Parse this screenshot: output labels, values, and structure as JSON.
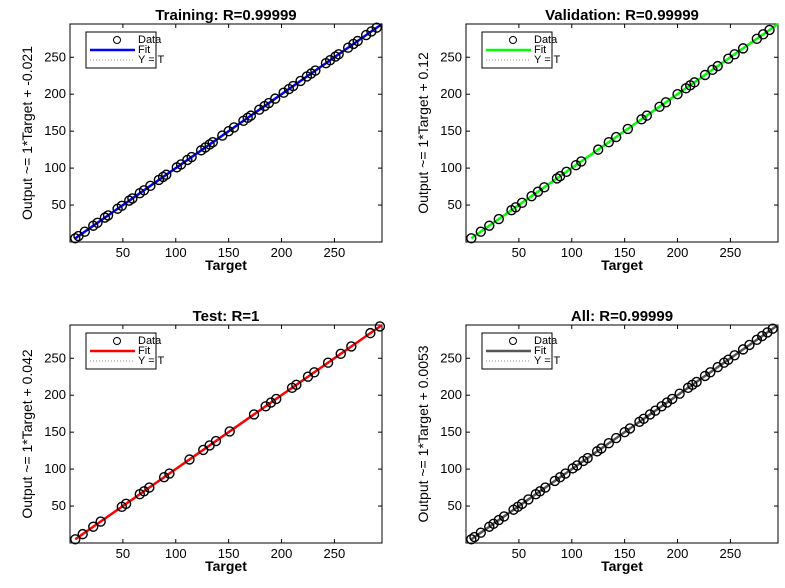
{
  "figure": {
    "legend_labels": [
      "Data",
      "Fit",
      "Y = T"
    ]
  },
  "chart_data": [
    {
      "type": "scatter",
      "title": "Training: R=0.99999",
      "xlabel": "Target",
      "ylabel": "Output ~= 1*Target + -0.021",
      "xlim": [
        0,
        295
      ],
      "ylim": [
        0,
        295
      ],
      "xticks": [
        50,
        100,
        150,
        200,
        250
      ],
      "yticks": [
        50,
        100,
        150,
        200,
        250
      ],
      "legend": [
        "Data",
        "Fit",
        "Y = T"
      ],
      "fit_color": "#0000ff",
      "fit_label": "Fit",
      "fit": {
        "slope": 1,
        "intercept": -0.021
      },
      "series": [
        {
          "name": "Data",
          "values": [
            [
              5,
              5
            ],
            [
              8,
              8
            ],
            [
              14,
              14
            ],
            [
              22,
              22
            ],
            [
              26,
              26
            ],
            [
              33,
              33
            ],
            [
              36,
              36
            ],
            [
              45,
              45
            ],
            [
              49,
              49
            ],
            [
              56,
              56
            ],
            [
              59,
              59
            ],
            [
              66,
              66
            ],
            [
              70,
              70
            ],
            [
              76,
              76
            ],
            [
              84,
              84
            ],
            [
              88,
              88
            ],
            [
              91,
              91
            ],
            [
              101,
              101
            ],
            [
              105,
              105
            ],
            [
              111,
              111
            ],
            [
              115,
              115
            ],
            [
              124,
              124
            ],
            [
              128,
              128
            ],
            [
              132,
              132
            ],
            [
              135,
              135
            ],
            [
              144,
              144
            ],
            [
              150,
              150
            ],
            [
              155,
              155
            ],
            [
              164,
              164
            ],
            [
              168,
              168
            ],
            [
              171,
              171
            ],
            [
              179,
              179
            ],
            [
              184,
              184
            ],
            [
              188,
              188
            ],
            [
              194,
              194
            ],
            [
              202,
              202
            ],
            [
              207,
              207
            ],
            [
              211,
              211
            ],
            [
              218,
              218
            ],
            [
              224,
              224
            ],
            [
              228,
              228
            ],
            [
              232,
              232
            ],
            [
              242,
              242
            ],
            [
              246,
              246
            ],
            [
              251,
              251
            ],
            [
              254,
              254
            ],
            [
              263,
              263
            ],
            [
              268,
              268
            ],
            [
              272,
              272
            ],
            [
              280,
              280
            ],
            [
              285,
              285
            ],
            [
              290,
              290
            ]
          ]
        }
      ]
    },
    {
      "type": "scatter",
      "title": "Validation: R=0.99999",
      "xlabel": "Target",
      "ylabel": "Output ~= 1*Target + 0.12",
      "xlim": [
        0,
        295
      ],
      "ylim": [
        0,
        295
      ],
      "xticks": [
        50,
        100,
        150,
        200,
        250
      ],
      "yticks": [
        50,
        100,
        150,
        200,
        250
      ],
      "legend": [
        "Data",
        "Fit",
        "Y = T"
      ],
      "fit_color": "#00ff00",
      "fit_label": "Fit",
      "fit": {
        "slope": 1,
        "intercept": 0.12
      },
      "series": [
        {
          "name": "Data",
          "values": [
            [
              5,
              5
            ],
            [
              14,
              14
            ],
            [
              22,
              22
            ],
            [
              31,
              31
            ],
            [
              43,
              43
            ],
            [
              47,
              47
            ],
            [
              53,
              53
            ],
            [
              62,
              62
            ],
            [
              68,
              68
            ],
            [
              74,
              74
            ],
            [
              86,
              86
            ],
            [
              89,
              89
            ],
            [
              95,
              95
            ],
            [
              104,
              104
            ],
            [
              109,
              109
            ],
            [
              125,
              125
            ],
            [
              135,
              135
            ],
            [
              142,
              142
            ],
            [
              153,
              153
            ],
            [
              166,
              166
            ],
            [
              171,
              171
            ],
            [
              183,
              183
            ],
            [
              189,
              189
            ],
            [
              200,
              200
            ],
            [
              208,
              208
            ],
            [
              212,
              212
            ],
            [
              216,
              216
            ],
            [
              226,
              226
            ],
            [
              233,
              233
            ],
            [
              238,
              238
            ],
            [
              248,
              248
            ],
            [
              254,
              254
            ],
            [
              262,
              262
            ],
            [
              275,
              275
            ],
            [
              281,
              281
            ],
            [
              287,
              287
            ]
          ]
        }
      ]
    },
    {
      "type": "scatter",
      "title": "Test: R=1",
      "xlabel": "Target",
      "ylabel": "Output ~= 1*Target + 0.042",
      "xlim": [
        0,
        295
      ],
      "ylim": [
        0,
        295
      ],
      "xticks": [
        50,
        100,
        150,
        200,
        250
      ],
      "yticks": [
        50,
        100,
        150,
        200,
        250
      ],
      "legend": [
        "Data",
        "Fit",
        "Y = T"
      ],
      "fit_color": "#ff0000",
      "fit_label": "Fit",
      "fit": {
        "slope": 1,
        "intercept": 0.042
      },
      "series": [
        {
          "name": "Data",
          "values": [
            [
              5,
              5
            ],
            [
              12,
              12
            ],
            [
              22,
              22
            ],
            [
              29,
              29
            ],
            [
              49,
              49
            ],
            [
              53,
              53
            ],
            [
              66,
              66
            ],
            [
              70,
              70
            ],
            [
              75,
              75
            ],
            [
              89,
              89
            ],
            [
              94,
              94
            ],
            [
              113,
              113
            ],
            [
              126,
              126
            ],
            [
              132,
              132
            ],
            [
              138,
              138
            ],
            [
              151,
              151
            ],
            [
              174,
              174
            ],
            [
              185,
              185
            ],
            [
              190,
              190
            ],
            [
              195,
              195
            ],
            [
              210,
              210
            ],
            [
              214,
              214
            ],
            [
              225,
              225
            ],
            [
              231,
              231
            ],
            [
              244,
              244
            ],
            [
              256,
              256
            ],
            [
              266,
              266
            ],
            [
              284,
              284
            ],
            [
              293,
              293
            ]
          ]
        }
      ]
    },
    {
      "type": "scatter",
      "title": "All: R=0.99999",
      "xlabel": "Target",
      "ylabel": "Output ~= 1*Target + 0.0053",
      "xlim": [
        0,
        295
      ],
      "ylim": [
        0,
        295
      ],
      "xticks": [
        50,
        100,
        150,
        200,
        250
      ],
      "yticks": [
        50,
        100,
        150,
        200,
        250
      ],
      "legend": [
        "Data",
        "Fit",
        "Y = T"
      ],
      "fit_color": "#555555",
      "fit_label": "Fit",
      "fit": {
        "slope": 1,
        "intercept": 0.0053
      },
      "series": [
        {
          "name": "Data",
          "values": [
            [
              5,
              5
            ],
            [
              8,
              8
            ],
            [
              14,
              14
            ],
            [
              22,
              22
            ],
            [
              26,
              26
            ],
            [
              31,
              31
            ],
            [
              36,
              36
            ],
            [
              45,
              45
            ],
            [
              49,
              49
            ],
            [
              53,
              53
            ],
            [
              59,
              59
            ],
            [
              66,
              66
            ],
            [
              70,
              70
            ],
            [
              75,
              75
            ],
            [
              84,
              84
            ],
            [
              89,
              89
            ],
            [
              94,
              94
            ],
            [
              101,
              101
            ],
            [
              105,
              105
            ],
            [
              111,
              111
            ],
            [
              115,
              115
            ],
            [
              124,
              124
            ],
            [
              128,
              128
            ],
            [
              135,
              135
            ],
            [
              142,
              142
            ],
            [
              150,
              150
            ],
            [
              155,
              155
            ],
            [
              164,
              164
            ],
            [
              168,
              168
            ],
            [
              174,
              174
            ],
            [
              179,
              179
            ],
            [
              185,
              185
            ],
            [
              190,
              190
            ],
            [
              195,
              195
            ],
            [
              202,
              202
            ],
            [
              210,
              210
            ],
            [
              214,
              214
            ],
            [
              218,
              218
            ],
            [
              226,
              226
            ],
            [
              231,
              231
            ],
            [
              238,
              238
            ],
            [
              244,
              244
            ],
            [
              248,
              248
            ],
            [
              254,
              254
            ],
            [
              262,
              262
            ],
            [
              268,
              268
            ],
            [
              275,
              275
            ],
            [
              280,
              280
            ],
            [
              285,
              285
            ],
            [
              290,
              290
            ]
          ]
        }
      ]
    }
  ]
}
